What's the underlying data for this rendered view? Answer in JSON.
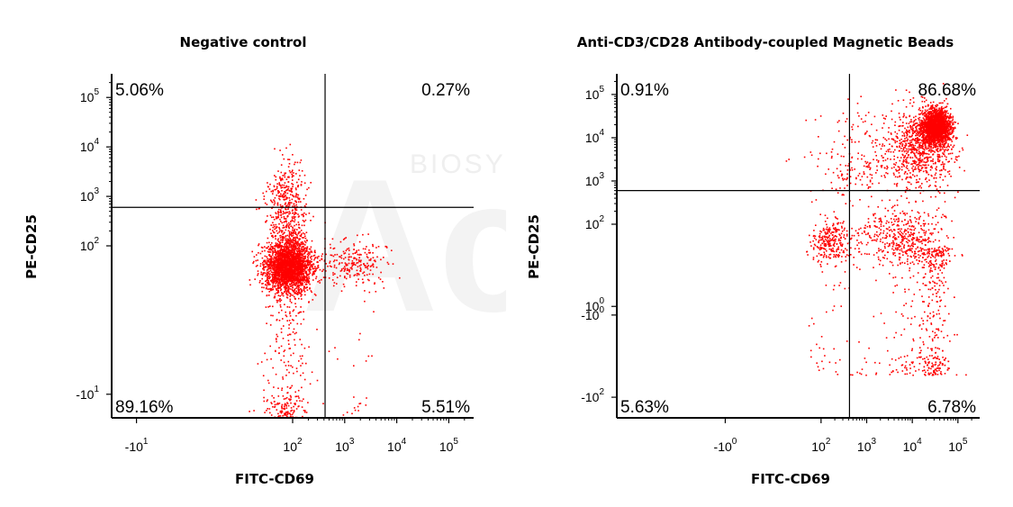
{
  "watermark": {
    "brand": "Acro",
    "sub": "BIOSYSTEMS"
  },
  "chart_data": [
    {
      "type": "scatter",
      "title": "Negative control",
      "xlabel": "FITC-CD69",
      "ylabel": "PE-CD25",
      "x_scale": "biexponential",
      "y_scale": "biexponential",
      "x_ticks": [
        {
          "base": "-10",
          "exp": "1",
          "value": -10
        },
        {
          "base": "10",
          "exp": "2",
          "value": 100
        },
        {
          "base": "10",
          "exp": "3",
          "value": 1000
        },
        {
          "base": "10",
          "exp": "4",
          "value": 10000
        },
        {
          "base": "10",
          "exp": "5",
          "value": 100000
        }
      ],
      "y_ticks": [
        {
          "base": "-10",
          "exp": "1",
          "value": -10
        },
        {
          "base": "10",
          "exp": "2",
          "value": 100
        },
        {
          "base": "10",
          "exp": "3",
          "value": 1000
        },
        {
          "base": "10",
          "exp": "4",
          "value": 10000
        },
        {
          "base": "10",
          "exp": "5",
          "value": 100000
        }
      ],
      "gate": {
        "x": 420,
        "y": 600
      },
      "quadrants": {
        "upper_left": "5.06%",
        "upper_right": "0.27%",
        "lower_left": "89.16%",
        "lower_right": "5.51%"
      },
      "color": "#ff0000",
      "populations": [
        {
          "x_center": 80,
          "y_center": 40,
          "spread_x": 0.22,
          "spread_y": 0.25,
          "count": 2600
        },
        {
          "x_center": 70,
          "y_center": 1200,
          "spread_x": 0.2,
          "spread_y": 0.35,
          "count": 260
        },
        {
          "x_center": 80,
          "y_center": 250,
          "spread_x": 0.18,
          "spread_y": 0.35,
          "count": 300
        },
        {
          "x_center": 1200,
          "y_center": 50,
          "spread_x": 0.35,
          "spread_y": 0.25,
          "count": 280
        }
      ]
    },
    {
      "type": "scatter",
      "title": "Anti-CD3/CD28 Antibody-coupled Magnetic Beads",
      "xlabel": "FITC-CD69",
      "ylabel": "PE-CD25",
      "x_scale": "biexponential",
      "y_scale": "biexponential",
      "x_ticks": [
        {
          "base": "-10",
          "exp": "0",
          "value": -1
        },
        {
          "base": "10",
          "exp": "2",
          "value": 100
        },
        {
          "base": "10",
          "exp": "3",
          "value": 1000
        },
        {
          "base": "10",
          "exp": "4",
          "value": 10000
        },
        {
          "base": "10",
          "exp": "5",
          "value": 100000
        }
      ],
      "y_ticks": [
        {
          "base": "-10",
          "exp": "2",
          "value": -100
        },
        {
          "base": "-10",
          "exp": "0",
          "value": -1
        },
        {
          "base": "10",
          "exp": "0",
          "value": 1
        },
        {
          "base": "10",
          "exp": "2",
          "value": 100
        },
        {
          "base": "10",
          "exp": "3",
          "value": 1000
        },
        {
          "base": "10",
          "exp": "4",
          "value": 10000
        },
        {
          "base": "10",
          "exp": "5",
          "value": 100000
        }
      ],
      "gate": {
        "x": 420,
        "y": 600
      },
      "quadrants": {
        "upper_left": "0.91%",
        "upper_right": "86.68%",
        "lower_left": "5.63%",
        "lower_right": "6.78%"
      },
      "color": "#ff0000",
      "populations": [
        {
          "x_center": 32000,
          "y_center": 18000,
          "spread_x": 0.16,
          "spread_y": 0.2,
          "count": 2400
        },
        {
          "x_center": 15000,
          "y_center": 6000,
          "spread_x": 0.35,
          "spread_y": 0.45,
          "count": 900
        },
        {
          "x_center": 150,
          "y_center": 40,
          "spread_x": 0.2,
          "spread_y": 0.25,
          "count": 280
        },
        {
          "x_center": 5000,
          "y_center": 60,
          "spread_x": 0.5,
          "spread_y": 0.35,
          "count": 500
        },
        {
          "x_center": 800,
          "y_center": 3000,
          "spread_x": 0.6,
          "spread_y": 0.6,
          "count": 260
        }
      ]
    }
  ]
}
